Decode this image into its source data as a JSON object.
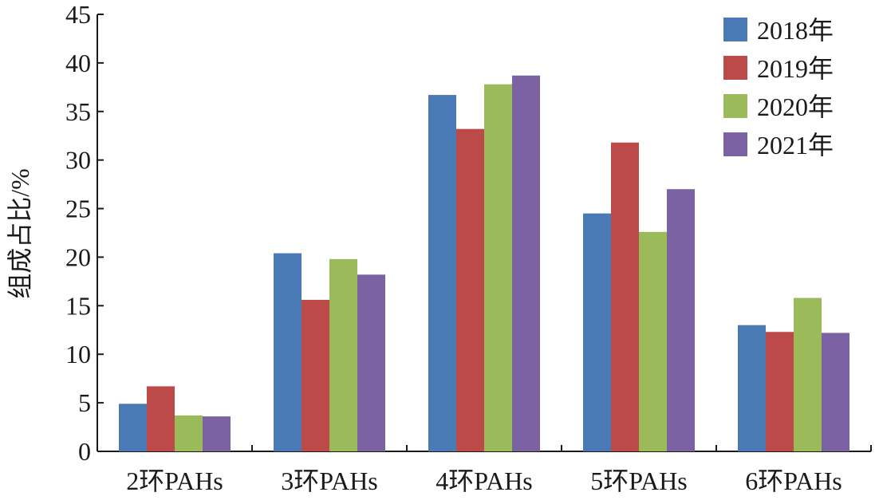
{
  "chart_data": {
    "type": "bar",
    "title": "",
    "xlabel": "",
    "ylabel": "组成占比/%",
    "ylim": [
      0,
      45
    ],
    "yticks": [
      0,
      5,
      10,
      15,
      20,
      25,
      30,
      35,
      40,
      45
    ],
    "grid": false,
    "legend_position": "top-right",
    "categories": [
      "2环PAHs",
      "3环PAHs",
      "4环PAHs",
      "5环PAHs",
      "6环PAHs"
    ],
    "series": [
      {
        "name": "2018年",
        "color": "#4a7ab5",
        "values": [
          4.9,
          20.4,
          36.7,
          24.5,
          13.0
        ]
      },
      {
        "name": "2019年",
        "color": "#bc4a48",
        "values": [
          6.7,
          15.6,
          33.2,
          31.8,
          12.3
        ]
      },
      {
        "name": "2020年",
        "color": "#9bba59",
        "values": [
          3.7,
          19.8,
          37.8,
          22.6,
          15.8
        ]
      },
      {
        "name": "2021年",
        "color": "#7b62a2",
        "values": [
          3.6,
          18.2,
          38.7,
          27.0,
          12.2
        ]
      }
    ]
  }
}
